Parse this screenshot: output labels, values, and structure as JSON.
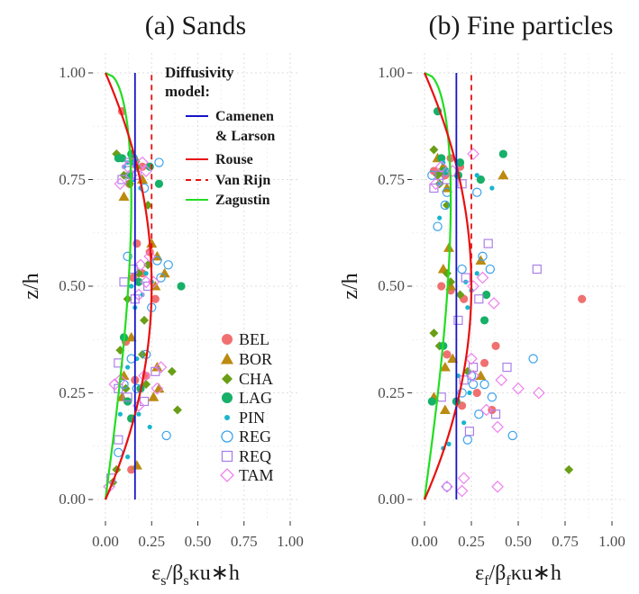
{
  "chart_data": [
    {
      "type": "scatter",
      "panel": "a",
      "title": "(a) Sands",
      "ylabel": "z/h",
      "xlabel_parts": {
        "sym": "ε",
        "sub1": "s",
        "mid": "/β",
        "sub2": "s",
        "tail": "κu∗h"
      },
      "xlim": [
        0,
        1
      ],
      "ylim": [
        0,
        1
      ],
      "xticks": [
        "0.00",
        "0.25",
        "0.50",
        "0.75",
        "1.00"
      ],
      "yticks": [
        "0.00",
        "0.25",
        "0.50",
        "0.75",
        "1.00"
      ],
      "grid": true,
      "legend_model": {
        "title_line1": "Diffusivity",
        "title_line2": "model:",
        "items": [
          {
            "name": "Camenen",
            "name2": "& Larson",
            "color": "#1414c8",
            "dash": "solid"
          },
          {
            "name": "Rouse",
            "color": "#e81010",
            "dash": "solid"
          },
          {
            "name": "Van Rijn",
            "color": "#e81010",
            "dash": "dashed"
          },
          {
            "name": "Zagustin",
            "color": "#22dd22",
            "dash": "solid"
          }
        ]
      },
      "legend_sites": [
        {
          "name": "BEL",
          "marker": "circle",
          "color": "#f07070"
        },
        {
          "name": "BOR",
          "marker": "triangle",
          "color": "#bb8a10"
        },
        {
          "name": "CHA",
          "marker": "diamond",
          "color": "#6a9e16"
        },
        {
          "name": "LAG",
          "marker": "circle",
          "color": "#16b068"
        },
        {
          "name": "PIN",
          "marker": "smalldot",
          "color": "#18b6cc"
        },
        {
          "name": "REG",
          "marker": "opencircle",
          "color": "#3aa2ee"
        },
        {
          "name": "REQ",
          "marker": "opensquare",
          "color": "#aa80e8"
        },
        {
          "name": "TAM",
          "marker": "opendiamond",
          "color": "#ee80ee"
        }
      ],
      "models": {
        "camenen_larson": 0.16,
        "van_rijn_plateau": 0.25,
        "rouse": "z/h*(1-z/h)",
        "zagustin": "0.4*(1-z/h)^0.5*(z/h)^1.25 fit"
      },
      "points": {
        "BEL": [
          [
            0.09,
            0.91
          ],
          [
            0.2,
            0.78
          ],
          [
            0.13,
            0.74
          ],
          [
            0.17,
            0.6
          ],
          [
            0.24,
            0.58
          ],
          [
            0.2,
            0.53
          ],
          [
            0.27,
            0.47
          ],
          [
            0.11,
            0.37
          ],
          [
            0.16,
            0.28
          ],
          [
            0.22,
            0.29
          ],
          [
            0.14,
            0.19
          ],
          [
            0.14,
            0.07
          ],
          [
            0.15,
            0.52
          ]
        ],
        "BOR": [
          [
            0.16,
            0.8
          ],
          [
            0.2,
            0.75
          ],
          [
            0.1,
            0.71
          ],
          [
            0.25,
            0.6
          ],
          [
            0.28,
            0.57
          ],
          [
            0.27,
            0.5
          ],
          [
            0.32,
            0.53
          ],
          [
            0.28,
            0.31
          ],
          [
            0.29,
            0.26
          ],
          [
            0.26,
            0.24
          ],
          [
            0.14,
            0.38
          ],
          [
            0.17,
            0.08
          ],
          [
            0.09,
            0.24
          ],
          [
            0.1,
            0.29
          ]
        ],
        "CHA": [
          [
            0.06,
            0.81
          ],
          [
            0.17,
            0.78
          ],
          [
            0.1,
            0.76
          ],
          [
            0.13,
            0.74
          ],
          [
            0.23,
            0.69
          ],
          [
            0.18,
            0.53
          ],
          [
            0.12,
            0.47
          ],
          [
            0.21,
            0.42
          ],
          [
            0.08,
            0.35
          ],
          [
            0.2,
            0.34
          ],
          [
            0.36,
            0.3
          ],
          [
            0.39,
            0.21
          ],
          [
            0.22,
            0.27
          ],
          [
            0.06,
            0.07
          ],
          [
            0.04,
            0.04
          ],
          [
            0.23,
            0.55
          ],
          [
            0.11,
            0.26
          ]
        ],
        "LAG": [
          [
            0.07,
            0.8
          ],
          [
            0.14,
            0.81
          ],
          [
            0.16,
            0.79
          ],
          [
            0.13,
            0.76
          ],
          [
            0.29,
            0.74
          ],
          [
            0.18,
            0.51
          ],
          [
            0.41,
            0.5
          ],
          [
            0.1,
            0.38
          ],
          [
            0.14,
            0.19
          ],
          [
            0.19,
            0.26
          ],
          [
            0.12,
            0.23
          ],
          [
            0.24,
            0.78
          ],
          [
            0.09,
            0.8
          ]
        ],
        "PIN": [
          [
            0.12,
            0.79
          ],
          [
            0.15,
            0.75
          ],
          [
            0.19,
            0.73
          ],
          [
            0.1,
            0.78
          ],
          [
            0.22,
            0.53
          ],
          [
            0.25,
            0.51
          ],
          [
            0.14,
            0.5
          ],
          [
            0.2,
            0.48
          ],
          [
            0.17,
            0.33
          ],
          [
            0.12,
            0.31
          ],
          [
            0.18,
            0.2
          ],
          [
            0.24,
            0.17
          ],
          [
            0.12,
            0.1
          ],
          [
            0.16,
            0.45
          ],
          [
            0.08,
            0.2
          ]
        ],
        "REG": [
          [
            0.29,
            0.79
          ],
          [
            0.21,
            0.73
          ],
          [
            0.15,
            0.8
          ],
          [
            0.34,
            0.55
          ],
          [
            0.3,
            0.52
          ],
          [
            0.28,
            0.56
          ],
          [
            0.25,
            0.45
          ],
          [
            0.22,
            0.34
          ],
          [
            0.14,
            0.33
          ],
          [
            0.1,
            0.27
          ],
          [
            0.07,
            0.11
          ],
          [
            0.33,
            0.15
          ],
          [
            0.17,
            0.26
          ],
          [
            0.12,
            0.57
          ]
        ],
        "REQ": [
          [
            0.13,
            0.79
          ],
          [
            0.09,
            0.75
          ],
          [
            0.17,
            0.76
          ],
          [
            0.1,
            0.51
          ],
          [
            0.23,
            0.5
          ],
          [
            0.16,
            0.47
          ],
          [
            0.07,
            0.32
          ],
          [
            0.12,
            0.24
          ],
          [
            0.27,
            0.3
          ],
          [
            0.21,
            0.23
          ],
          [
            0.07,
            0.14
          ],
          [
            0.03,
            0.05
          ],
          [
            0.15,
            0.54
          ],
          [
            0.07,
            0.26
          ]
        ],
        "TAM": [
          [
            0.12,
            0.78
          ],
          [
            0.14,
            0.76
          ],
          [
            0.2,
            0.79
          ],
          [
            0.22,
            0.77
          ],
          [
            0.08,
            0.74
          ],
          [
            0.19,
            0.55
          ],
          [
            0.24,
            0.57
          ],
          [
            0.26,
            0.51
          ],
          [
            0.18,
            0.48
          ],
          [
            0.3,
            0.31
          ],
          [
            0.21,
            0.29
          ],
          [
            0.08,
            0.28
          ],
          [
            0.28,
            0.26
          ],
          [
            0.18,
            0.22
          ],
          [
            0.02,
            0.03
          ],
          [
            0.22,
            0.51
          ],
          [
            0.05,
            0.27
          ]
        ]
      }
    },
    {
      "type": "scatter",
      "panel": "b",
      "title": "(b) Fine particles",
      "ylabel": "z/h",
      "xlabel_parts": {
        "sym": "ε",
        "sub1": "f",
        "mid": "/β",
        "sub2": "f",
        "tail": "κu∗h"
      },
      "xlim": [
        0,
        1
      ],
      "ylim": [
        0,
        1
      ],
      "xticks": [
        "0.00",
        "0.25",
        "0.50",
        "0.75",
        "1.00"
      ],
      "yticks": [
        "0.00",
        "0.25",
        "0.50",
        "0.75",
        "1.00"
      ],
      "grid": true,
      "models": {
        "camenen_larson": 0.17,
        "van_rijn_plateau": 0.25,
        "rouse": "z/h*(1-z/h)",
        "zagustin": "fit"
      },
      "points": {
        "BEL": [
          [
            0.05,
            0.77
          ],
          [
            0.11,
            0.76
          ],
          [
            0.14,
            0.8
          ],
          [
            0.19,
            0.78
          ],
          [
            0.09,
            0.5
          ],
          [
            0.14,
            0.49
          ],
          [
            0.21,
            0.47
          ],
          [
            0.84,
            0.47
          ],
          [
            0.38,
            0.36
          ],
          [
            0.32,
            0.32
          ],
          [
            0.28,
            0.25
          ],
          [
            0.2,
            0.22
          ],
          [
            0.36,
            0.21
          ],
          [
            0.12,
            0.34
          ]
        ],
        "BOR": [
          [
            0.07,
            0.8
          ],
          [
            0.1,
            0.78
          ],
          [
            0.42,
            0.76
          ],
          [
            0.12,
            0.73
          ],
          [
            0.13,
            0.59
          ],
          [
            0.1,
            0.54
          ],
          [
            0.3,
            0.56
          ],
          [
            0.14,
            0.5
          ],
          [
            0.11,
            0.31
          ],
          [
            0.3,
            0.29
          ],
          [
            0.05,
            0.24
          ],
          [
            0.11,
            0.21
          ],
          [
            0.15,
            0.33
          ]
        ],
        "CHA": [
          [
            0.05,
            0.82
          ],
          [
            0.07,
            0.76
          ],
          [
            0.09,
            0.77
          ],
          [
            0.12,
            0.69
          ],
          [
            0.08,
            0.74
          ],
          [
            0.14,
            0.51
          ],
          [
            0.05,
            0.39
          ],
          [
            0.08,
            0.36
          ],
          [
            0.23,
            0.3
          ],
          [
            0.77,
            0.07
          ],
          [
            0.19,
            0.48
          ],
          [
            0.12,
            0.53
          ]
        ],
        "LAG": [
          [
            0.07,
            0.91
          ],
          [
            0.09,
            0.8
          ],
          [
            0.19,
            0.79
          ],
          [
            0.42,
            0.81
          ],
          [
            0.3,
            0.75
          ],
          [
            0.33,
            0.48
          ],
          [
            0.32,
            0.42
          ],
          [
            0.1,
            0.36
          ],
          [
            0.17,
            0.23
          ],
          [
            0.04,
            0.23
          ],
          [
            0.11,
            0.77
          ],
          [
            0.18,
            0.76
          ]
        ],
        "PIN": [
          [
            0.1,
            0.79
          ],
          [
            0.08,
            0.74
          ],
          [
            0.12,
            0.77
          ],
          [
            0.28,
            0.76
          ],
          [
            0.36,
            0.73
          ],
          [
            0.08,
            0.66
          ],
          [
            0.22,
            0.51
          ],
          [
            0.28,
            0.53
          ],
          [
            0.25,
            0.49
          ],
          [
            0.23,
            0.45
          ],
          [
            0.18,
            0.29
          ],
          [
            0.24,
            0.25
          ],
          [
            0.21,
            0.18
          ],
          [
            0.13,
            0.13
          ],
          [
            0.1,
            0.12
          ]
        ],
        "REG": [
          [
            0.04,
            0.76
          ],
          [
            0.12,
            0.72
          ],
          [
            0.28,
            0.72
          ],
          [
            0.11,
            0.69
          ],
          [
            0.07,
            0.64
          ],
          [
            0.31,
            0.57
          ],
          [
            0.35,
            0.54
          ],
          [
            0.2,
            0.54
          ],
          [
            0.58,
            0.33
          ],
          [
            0.25,
            0.29
          ],
          [
            0.32,
            0.27
          ],
          [
            0.36,
            0.24
          ],
          [
            0.29,
            0.2
          ],
          [
            0.47,
            0.15
          ],
          [
            0.23,
            0.14
          ],
          [
            0.12,
            0.03
          ],
          [
            0.26,
            0.27
          ],
          [
            0.2,
            0.25
          ]
        ],
        "REQ": [
          [
            0.08,
            0.76
          ],
          [
            0.05,
            0.73
          ],
          [
            0.12,
            0.75
          ],
          [
            0.2,
            0.74
          ],
          [
            0.34,
            0.6
          ],
          [
            0.22,
            0.52
          ],
          [
            0.6,
            0.54
          ],
          [
            0.29,
            0.47
          ],
          [
            0.44,
            0.31
          ],
          [
            0.26,
            0.31
          ],
          [
            0.09,
            0.24
          ],
          [
            0.24,
            0.16
          ],
          [
            0.38,
            0.2
          ],
          [
            0.21,
            0.28
          ],
          [
            0.18,
            0.42
          ]
        ],
        "TAM": [
          [
            0.09,
            0.78
          ],
          [
            0.15,
            0.77
          ],
          [
            0.26,
            0.81
          ],
          [
            0.06,
            0.74
          ],
          [
            0.31,
            0.52
          ],
          [
            0.26,
            0.5
          ],
          [
            0.37,
            0.46
          ],
          [
            0.25,
            0.33
          ],
          [
            0.41,
            0.28
          ],
          [
            0.5,
            0.26
          ],
          [
            0.61,
            0.25
          ],
          [
            0.33,
            0.21
          ],
          [
            0.39,
            0.17
          ],
          [
            0.39,
            0.03
          ],
          [
            0.21,
            0.05
          ],
          [
            0.2,
            0.02
          ],
          [
            0.12,
            0.03
          ],
          [
            0.26,
            0.29
          ]
        ]
      }
    }
  ]
}
